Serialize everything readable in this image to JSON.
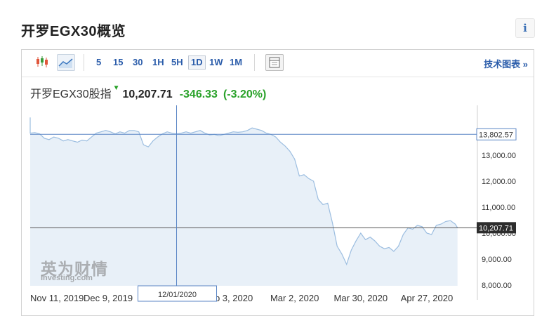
{
  "page": {
    "title": "开罗EGX30概览",
    "info_icon": "i"
  },
  "toolbar": {
    "timeframes": [
      "5",
      "15",
      "30",
      "1H",
      "5H",
      "1D",
      "1W",
      "1M"
    ],
    "selected_timeframe": "1D",
    "advanced_link": "技术图表 »"
  },
  "quote": {
    "name": "开罗EGX30股指",
    "direction_icon": "▼",
    "last": "10,207.71",
    "change": "-346.33",
    "change_pct": "(-3.20%)"
  },
  "watermark": {
    "cn": "英为财情",
    "en": "Investing.com"
  },
  "chart_data": {
    "type": "area",
    "ylim": [
      8000,
      14500
    ],
    "yticks": [
      "13,000.00",
      "12,000.00",
      "11,000.00",
      "10,000.00",
      "9,000.00",
      "8,000.00"
    ],
    "xticks": [
      {
        "date": "2019-11-11",
        "label": "Nov 11, 2019"
      },
      {
        "date": "2019-12-09",
        "label": "Dec 9, 2019"
      },
      {
        "date": "2020-02-03",
        "label": "Feb 3, 2020"
      },
      {
        "date": "2020-03-02",
        "label": "Mar 2, 2020"
      },
      {
        "date": "2020-03-30",
        "label": "Mar 30, 2020"
      },
      {
        "date": "2020-04-27",
        "label": "Apr 27, 2020"
      }
    ],
    "crosshair": {
      "date": "2020-01-12",
      "label": "12/01/2020",
      "value": 13802.57,
      "value_label": "13,802.57"
    },
    "last_price": {
      "value": 10207.71,
      "label": "10,207.71"
    },
    "series": [
      {
        "color": "#9bbde0",
        "fill": "#e8f0f8",
        "points": [
          [
            "2019-10-24",
            14450
          ],
          [
            "2019-10-26",
            14380
          ],
          [
            "2019-10-29",
            14300
          ],
          [
            "2019-11-01",
            14200
          ],
          [
            "2019-11-04",
            14150
          ],
          [
            "2019-11-06",
            14050
          ],
          [
            "2019-11-09",
            13900
          ],
          [
            "2019-11-11",
            13850
          ],
          [
            "2019-11-13",
            13870
          ],
          [
            "2019-11-15",
            13820
          ],
          [
            "2019-11-17",
            13650
          ],
          [
            "2019-11-19",
            13600
          ],
          [
            "2019-11-21",
            13700
          ],
          [
            "2019-11-23",
            13650
          ],
          [
            "2019-11-25",
            13550
          ],
          [
            "2019-11-27",
            13600
          ],
          [
            "2019-11-29",
            13550
          ],
          [
            "2019-12-01",
            13500
          ],
          [
            "2019-12-03",
            13580
          ],
          [
            "2019-12-05",
            13550
          ],
          [
            "2019-12-07",
            13700
          ],
          [
            "2019-12-09",
            13850
          ],
          [
            "2019-12-11",
            13900
          ],
          [
            "2019-12-13",
            13950
          ],
          [
            "2019-12-15",
            13900
          ],
          [
            "2019-12-17",
            13820
          ],
          [
            "2019-12-19",
            13900
          ],
          [
            "2019-12-21",
            13850
          ],
          [
            "2019-12-23",
            13950
          ],
          [
            "2019-12-25",
            13950
          ],
          [
            "2019-12-27",
            13900
          ],
          [
            "2019-12-29",
            13400
          ],
          [
            "2019-12-31",
            13320
          ],
          [
            "2020-01-02",
            13550
          ],
          [
            "2020-01-04",
            13700
          ],
          [
            "2020-01-06",
            13820
          ],
          [
            "2020-01-08",
            13900
          ],
          [
            "2020-01-10",
            13850
          ],
          [
            "2020-01-12",
            13820
          ],
          [
            "2020-01-14",
            13850
          ],
          [
            "2020-01-16",
            13900
          ],
          [
            "2020-01-18",
            13850
          ],
          [
            "2020-01-20",
            13900
          ],
          [
            "2020-01-22",
            13950
          ],
          [
            "2020-01-24",
            13850
          ],
          [
            "2020-01-26",
            13780
          ],
          [
            "2020-01-28",
            13800
          ],
          [
            "2020-01-30",
            13750
          ],
          [
            "2020-02-01",
            13800
          ],
          [
            "2020-02-03",
            13850
          ],
          [
            "2020-02-05",
            13900
          ],
          [
            "2020-02-07",
            13880
          ],
          [
            "2020-02-09",
            13900
          ],
          [
            "2020-02-11",
            13950
          ],
          [
            "2020-02-13",
            14050
          ],
          [
            "2020-02-15",
            14000
          ],
          [
            "2020-02-17",
            13950
          ],
          [
            "2020-02-19",
            13850
          ],
          [
            "2020-02-21",
            13800
          ],
          [
            "2020-02-23",
            13700
          ],
          [
            "2020-02-25",
            13500
          ],
          [
            "2020-02-27",
            13350
          ],
          [
            "2020-02-29",
            13150
          ],
          [
            "2020-03-02",
            12850
          ],
          [
            "2020-03-04",
            12200
          ],
          [
            "2020-03-06",
            12250
          ],
          [
            "2020-03-08",
            12100
          ],
          [
            "2020-03-10",
            12000
          ],
          [
            "2020-03-12",
            11300
          ],
          [
            "2020-03-14",
            11100
          ],
          [
            "2020-03-16",
            11150
          ],
          [
            "2020-03-18",
            10400
          ],
          [
            "2020-03-20",
            9500
          ],
          [
            "2020-03-22",
            9200
          ],
          [
            "2020-03-24",
            8800
          ],
          [
            "2020-03-26",
            9350
          ],
          [
            "2020-03-28",
            9700
          ],
          [
            "2020-03-30",
            10000
          ],
          [
            "2020-04-01",
            9750
          ],
          [
            "2020-04-03",
            9850
          ],
          [
            "2020-04-05",
            9700
          ],
          [
            "2020-04-07",
            9500
          ],
          [
            "2020-04-09",
            9400
          ],
          [
            "2020-04-11",
            9450
          ],
          [
            "2020-04-13",
            9300
          ],
          [
            "2020-04-15",
            9500
          ],
          [
            "2020-04-17",
            9950
          ],
          [
            "2020-04-19",
            10200
          ],
          [
            "2020-04-21",
            10150
          ],
          [
            "2020-04-23",
            10300
          ],
          [
            "2020-04-25",
            10250
          ],
          [
            "2020-04-27",
            10000
          ],
          [
            "2020-04-29",
            9950
          ],
          [
            "2020-05-01",
            10300
          ],
          [
            "2020-05-03",
            10350
          ],
          [
            "2020-05-05",
            10450
          ],
          [
            "2020-05-07",
            10480
          ],
          [
            "2020-05-09",
            10350
          ],
          [
            "2020-05-10",
            10208
          ]
        ]
      }
    ]
  }
}
